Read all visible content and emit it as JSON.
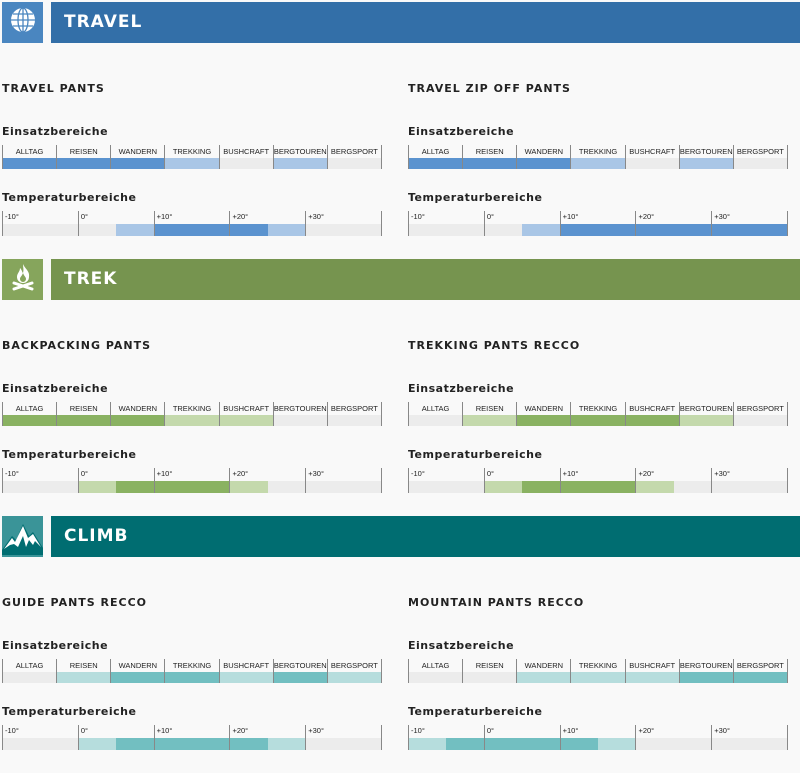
{
  "usage_categories": [
    "ALLTAG",
    "REISEN",
    "WANDERN",
    "TREKKING",
    "BUSHCRAFT",
    "BERGTOUREN",
    "BERGSPORT"
  ],
  "temp_ticks": [
    "-10°",
    "0°",
    "+10°",
    "+20°",
    "+30°"
  ],
  "temp_scale_note_steps_deg": 5,
  "labels": {
    "usage": "Einsatzbereiche",
    "temperature": "Temperaturbereiche"
  },
  "sections": [
    {
      "title": "TRAVEL",
      "icon": "globe-icon",
      "colors": {
        "header": "#336fa8",
        "icon_bg": "#4a86c0",
        "full": "#5b93cf",
        "light": "#a9c6e6"
      },
      "products": [
        {
          "name": "TRAVEL PANTS",
          "usage": [
            2,
            2,
            2,
            1,
            0,
            1,
            0
          ],
          "temperature": [
            0,
            0,
            0,
            1,
            2,
            2,
            2,
            1,
            0,
            0
          ]
        },
        {
          "name": "TRAVEL ZIP OFF PANTS",
          "usage": [
            2,
            2,
            2,
            1,
            0,
            1,
            0
          ],
          "temperature": [
            0,
            0,
            0,
            1,
            2,
            2,
            2,
            2,
            2,
            2
          ]
        }
      ]
    },
    {
      "title": "TREK",
      "icon": "campfire-icon",
      "colors": {
        "header": "#76944f",
        "icon_bg": "#86a55c",
        "full": "#8ab262",
        "light": "#c4d9ac"
      },
      "products": [
        {
          "name": "BACKPACKING PANTS",
          "usage": [
            2,
            2,
            2,
            1,
            1,
            0,
            0
          ],
          "temperature": [
            0,
            0,
            1,
            2,
            2,
            2,
            1,
            0,
            0,
            0
          ]
        },
        {
          "name": "TREKKING PANTS RECCO",
          "usage": [
            0,
            1,
            2,
            2,
            2,
            1,
            0
          ],
          "temperature": [
            0,
            0,
            1,
            2,
            2,
            2,
            1,
            0,
            0,
            0
          ]
        }
      ]
    },
    {
      "title": "CLIMB",
      "icon": "mountain-icon",
      "colors": {
        "header": "#006d71",
        "icon_bg": "#3a9498",
        "full": "#72bfc1",
        "light": "#b6dddd"
      },
      "products": [
        {
          "name": "GUIDE PANTS RECCO",
          "usage": [
            0,
            1,
            2,
            2,
            1,
            2,
            1
          ],
          "temperature": [
            0,
            0,
            1,
            2,
            2,
            2,
            2,
            1,
            0,
            0
          ]
        },
        {
          "name": "MOUNTAIN PANTS RECCO",
          "usage": [
            0,
            0,
            1,
            1,
            1,
            2,
            2
          ],
          "temperature": [
            1,
            2,
            2,
            2,
            2,
            1,
            0,
            0,
            0,
            0
          ]
        }
      ]
    }
  ]
}
